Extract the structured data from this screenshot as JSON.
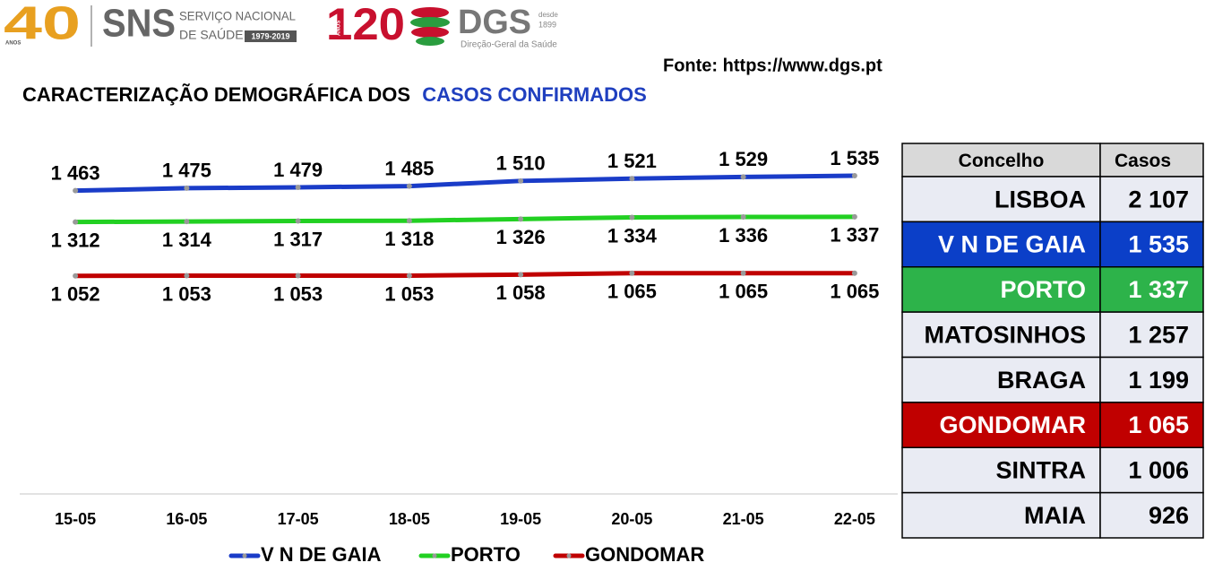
{
  "header": {
    "anniversary": "40",
    "anniversary_small": "ANOS",
    "sns": "SNS",
    "sns_line1": "SERVIÇO NACIONAL",
    "sns_line2": "DE SAÚDE",
    "sns_years": "1979-2019",
    "dgs_years": "120",
    "dgs_years_small": "ANOS",
    "dgs": "DGS",
    "dgs_since": "desde",
    "dgs_since_year": "1899",
    "dgs_name": "Direção-Geral da Saúde",
    "source": "Fonte: https://www.dgs.pt"
  },
  "chart_data": {
    "type": "line",
    "title": [
      "CARACTERIZAÇÃO DEMOGRÁFICA DOS",
      "CASOS CONFIRMADOS"
    ],
    "title_colors": [
      "#000000",
      "#1f3fbf"
    ],
    "categories": [
      "15-05",
      "16-05",
      "17-05",
      "18-05",
      "19-05",
      "20-05",
      "21-05",
      "22-05"
    ],
    "ylim": [
      0,
      1600
    ],
    "series": [
      {
        "name": "V N DE GAIA",
        "color": "#1a3cc8",
        "values": [
          1463,
          1475,
          1479,
          1485,
          1510,
          1521,
          1529,
          1535
        ],
        "value_labels": [
          "1 463",
          "1 475",
          "1 479",
          "1 485",
          "1 510",
          "1 521",
          "1 529",
          "1 535"
        ]
      },
      {
        "name": "PORTO",
        "color": "#22d022",
        "values": [
          1312,
          1314,
          1317,
          1318,
          1326,
          1334,
          1336,
          1337
        ],
        "value_labels": [
          "1 312",
          "1 314",
          "1 317",
          "1 318",
          "1 326",
          "1 334",
          "1 336",
          "1 337"
        ]
      },
      {
        "name": "GONDOMAR",
        "color": "#c00000",
        "values": [
          1052,
          1053,
          1053,
          1053,
          1058,
          1065,
          1065,
          1065
        ],
        "value_labels": [
          "1 052",
          "1 053",
          "1 053",
          "1 053",
          "1 058",
          "1 065",
          "1 065",
          "1 065"
        ]
      }
    ],
    "legend": "bottom"
  },
  "table": {
    "header": [
      "Concelho",
      "Casos"
    ],
    "rows": [
      [
        "LISBOA",
        "2 107"
      ],
      [
        "V N DE GAIA",
        "1 535"
      ],
      [
        "PORTO",
        "1 337"
      ],
      [
        "MATOSINHOS",
        "1 257"
      ],
      [
        "BRAGA",
        "1 199"
      ],
      [
        "GONDOMAR",
        "1 065"
      ],
      [
        "SINTRA",
        "1 006"
      ],
      [
        "MAIA",
        "926"
      ]
    ],
    "row_colors": [
      "#e9ebf3",
      "#0b3fc8",
      "#2db34a",
      "#e9ebf3",
      "#e9ebf3",
      "#c00000",
      "#e9ebf3",
      "#e9ebf3"
    ],
    "text_colors": [
      "#000000",
      "#ffffff",
      "#ffffff",
      "#000000",
      "#000000",
      "#ffffff",
      "#000000",
      "#000000"
    ],
    "header_color": "#d9d9d9"
  }
}
